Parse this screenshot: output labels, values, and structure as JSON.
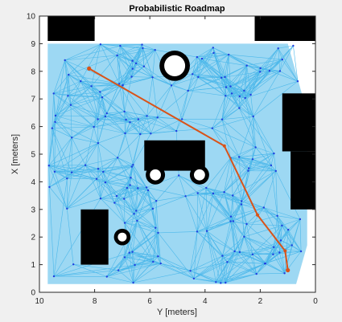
{
  "chart_data": {
    "type": "scatter",
    "title": "Probabilistic Roadmap",
    "xlabel": "Y [meters]",
    "ylabel": "X [meters]",
    "xlim": [
      10,
      0
    ],
    "ylim": [
      0,
      10
    ],
    "x_reversed": true,
    "xticks": [
      "10",
      "8",
      "6",
      "4",
      "2",
      "0"
    ],
    "yticks": [
      "0",
      "1",
      "2",
      "3",
      "4",
      "5",
      "6",
      "7",
      "8",
      "9",
      "10"
    ],
    "grid": false,
    "colors": {
      "free_space": "#ffffff",
      "obstacle": "#000000",
      "roadmap_edges": "#4db8ea",
      "nodes": "#1f3de0",
      "path": "#d95319",
      "axes": "#262626",
      "figure_bg": "#f0f0f0"
    },
    "obstacles": [
      {
        "y_range": [
          9.7,
          8.0
        ],
        "x_range": [
          9.1,
          10.0
        ]
      },
      {
        "y_range": [
          2.2,
          0.0
        ],
        "x_range": [
          9.1,
          10.0
        ]
      },
      {
        "y_range": [
          1.2,
          0.0
        ],
        "x_range": [
          5.1,
          7.2
        ]
      },
      {
        "y_range": [
          0.9,
          0.0
        ],
        "x_range": [
          3.0,
          5.1
        ]
      },
      {
        "y_range": [
          8.5,
          7.5
        ],
        "x_range": [
          1.0,
          3.0
        ]
      },
      {
        "y_range": [
          6.2,
          4.0
        ],
        "x_range": [
          4.4,
          5.5
        ]
      }
    ],
    "ring_obstacles": [
      {
        "y": 5.1,
        "x": 8.2,
        "r_outer": 0.55,
        "r_inner": 0.38
      },
      {
        "y": 5.8,
        "x": 4.25,
        "r_outer": 0.35,
        "r_inner": 0.2
      },
      {
        "y": 4.2,
        "x": 4.25,
        "r_outer": 0.35,
        "r_inner": 0.2
      },
      {
        "y": 7.0,
        "x": 2.0,
        "r_outer": 0.3,
        "r_inner": 0.16
      }
    ],
    "path": {
      "y": [
        8.2,
        3.3,
        2.1,
        1.1,
        1.0
      ],
      "x": [
        8.1,
        5.3,
        2.8,
        1.5,
        0.8
      ]
    },
    "path_start": {
      "y": 8.2,
      "x": 8.1
    },
    "path_goal": {
      "y": 1.0,
      "x": 0.8
    }
  }
}
